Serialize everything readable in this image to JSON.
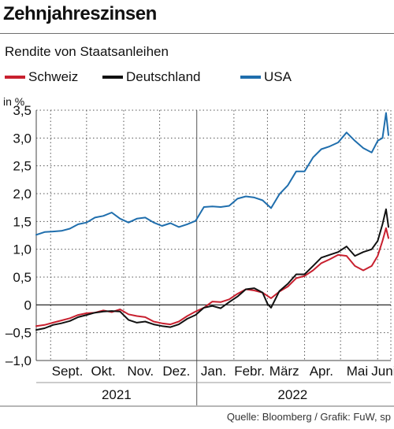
{
  "title": "Zehnjahreszinsen",
  "subtitle": "Rendite von Staatsanleihen",
  "source": "Quelle: Bloomberg / Grafik: FuW, sp",
  "colors": {
    "Schweiz": "#c8202f",
    "Deutschland": "#111111",
    "USA": "#1f6ead"
  },
  "chart_data": {
    "type": "line",
    "title": "Zehnjahreszinsen",
    "subtitle": "Rendite von Staatsanleihen",
    "ylabel": "in %",
    "ylim": [
      -1.0,
      3.5
    ],
    "yticks": [
      3.5,
      3.0,
      2.5,
      2.0,
      1.5,
      1.0,
      0.5,
      0,
      -0.5,
      -1.0
    ],
    "ytick_labels": [
      "3,5",
      "3,0",
      "2,5",
      "2,0",
      "1,5",
      "1,0",
      "0,5",
      "0",
      "–0,5",
      "–1,0"
    ],
    "xlim": [
      "2021-08-20",
      "2022-06-12"
    ],
    "month_labels": [
      {
        "label": "Sept.",
        "date": "2021-09-15"
      },
      {
        "label": "Okt.",
        "date": "2021-10-15"
      },
      {
        "label": "Nov.",
        "date": "2021-11-15"
      },
      {
        "label": "Dez.",
        "date": "2021-12-15"
      },
      {
        "label": "Jan.",
        "date": "2022-01-15"
      },
      {
        "label": "Febr.",
        "date": "2022-02-14"
      },
      {
        "label": "März",
        "date": "2022-03-15"
      },
      {
        "label": "Apr.",
        "date": "2022-04-15"
      },
      {
        "label": "Mai",
        "date": "2022-05-15"
      },
      {
        "label": "Juni",
        "date": "2022-06-06"
      }
    ],
    "month_gridlines": [
      "2021-09-01",
      "2021-10-01",
      "2021-11-01",
      "2021-12-01",
      "2022-02-01",
      "2022-03-01",
      "2022-04-01",
      "2022-05-01",
      "2022-06-01"
    ],
    "year_labels": [
      {
        "label": "2021",
        "date": "2021-10-26"
      },
      {
        "label": "2022",
        "date": "2022-03-22"
      }
    ],
    "year_boundary": "2022-01-01",
    "grid": true,
    "legend_position": "top",
    "series": [
      {
        "name": "Schweiz",
        "x": [
          "2021-08-20",
          "2021-08-27",
          "2021-09-03",
          "2021-09-10",
          "2021-09-17",
          "2021-09-24",
          "2021-10-01",
          "2021-10-08",
          "2021-10-15",
          "2021-10-22",
          "2021-10-29",
          "2021-11-05",
          "2021-11-12",
          "2021-11-19",
          "2021-11-26",
          "2021-12-03",
          "2021-12-10",
          "2021-12-17",
          "2021-12-24",
          "2021-12-31",
          "2022-01-07",
          "2022-01-14",
          "2022-01-21",
          "2022-01-28",
          "2022-02-04",
          "2022-02-11",
          "2022-02-18",
          "2022-02-25",
          "2022-03-04",
          "2022-03-11",
          "2022-03-18",
          "2022-03-25",
          "2022-04-01",
          "2022-04-08",
          "2022-04-15",
          "2022-04-22",
          "2022-04-29",
          "2022-05-06",
          "2022-05-13",
          "2022-05-20",
          "2022-05-27",
          "2022-06-01",
          "2022-06-05",
          "2022-06-08",
          "2022-06-10"
        ],
        "values": [
          -0.38,
          -0.36,
          -0.32,
          -0.28,
          -0.24,
          -0.18,
          -0.15,
          -0.14,
          -0.1,
          -0.13,
          -0.08,
          -0.17,
          -0.2,
          -0.22,
          -0.3,
          -0.33,
          -0.35,
          -0.3,
          -0.2,
          -0.12,
          -0.05,
          0.06,
          0.05,
          0.1,
          0.2,
          0.28,
          0.26,
          0.22,
          0.12,
          0.24,
          0.33,
          0.48,
          0.52,
          0.62,
          0.75,
          0.82,
          0.9,
          0.88,
          0.7,
          0.62,
          0.7,
          0.88,
          1.15,
          1.38,
          1.2
        ]
      },
      {
        "name": "Deutschland",
        "x": [
          "2021-08-20",
          "2021-08-27",
          "2021-09-03",
          "2021-09-10",
          "2021-09-17",
          "2021-09-24",
          "2021-10-01",
          "2021-10-08",
          "2021-10-15",
          "2021-10-22",
          "2021-10-29",
          "2021-11-05",
          "2021-11-12",
          "2021-11-19",
          "2021-11-26",
          "2021-12-03",
          "2021-12-10",
          "2021-12-17",
          "2021-12-24",
          "2021-12-31",
          "2022-01-07",
          "2022-01-14",
          "2022-01-21",
          "2022-01-28",
          "2022-02-04",
          "2022-02-11",
          "2022-02-18",
          "2022-02-25",
          "2022-03-01",
          "2022-03-04",
          "2022-03-11",
          "2022-03-18",
          "2022-03-25",
          "2022-04-01",
          "2022-04-08",
          "2022-04-15",
          "2022-04-22",
          "2022-04-29",
          "2022-05-06",
          "2022-05-13",
          "2022-05-20",
          "2022-05-27",
          "2022-06-01",
          "2022-06-05",
          "2022-06-08",
          "2022-06-10"
        ],
        "values": [
          -0.45,
          -0.42,
          -0.36,
          -0.33,
          -0.29,
          -0.22,
          -0.18,
          -0.14,
          -0.12,
          -0.11,
          -0.12,
          -0.27,
          -0.32,
          -0.3,
          -0.35,
          -0.38,
          -0.4,
          -0.35,
          -0.25,
          -0.18,
          -0.05,
          -0.02,
          -0.06,
          0.05,
          0.15,
          0.28,
          0.3,
          0.22,
          0.02,
          -0.05,
          0.25,
          0.38,
          0.55,
          0.55,
          0.7,
          0.85,
          0.9,
          0.95,
          1.05,
          0.88,
          0.95,
          1.0,
          1.15,
          1.45,
          1.72,
          1.4
        ]
      },
      {
        "name": "USA",
        "x": [
          "2021-08-20",
          "2021-08-27",
          "2021-09-03",
          "2021-09-10",
          "2021-09-17",
          "2021-09-24",
          "2021-10-01",
          "2021-10-08",
          "2021-10-15",
          "2021-10-22",
          "2021-10-29",
          "2021-11-05",
          "2021-11-12",
          "2021-11-19",
          "2021-11-26",
          "2021-12-03",
          "2021-12-10",
          "2021-12-17",
          "2021-12-24",
          "2021-12-31",
          "2022-01-07",
          "2022-01-14",
          "2022-01-21",
          "2022-01-28",
          "2022-02-04",
          "2022-02-11",
          "2022-02-18",
          "2022-02-25",
          "2022-03-04",
          "2022-03-11",
          "2022-03-18",
          "2022-03-25",
          "2022-04-01",
          "2022-04-08",
          "2022-04-15",
          "2022-04-22",
          "2022-04-29",
          "2022-05-06",
          "2022-05-13",
          "2022-05-20",
          "2022-05-27",
          "2022-06-01",
          "2022-06-05",
          "2022-06-08",
          "2022-06-10"
        ],
        "values": [
          1.26,
          1.31,
          1.32,
          1.33,
          1.37,
          1.45,
          1.48,
          1.57,
          1.6,
          1.66,
          1.55,
          1.48,
          1.55,
          1.57,
          1.48,
          1.42,
          1.47,
          1.4,
          1.45,
          1.51,
          1.76,
          1.77,
          1.76,
          1.78,
          1.91,
          1.95,
          1.93,
          1.88,
          1.74,
          1.99,
          2.15,
          2.4,
          2.4,
          2.65,
          2.8,
          2.85,
          2.92,
          3.1,
          2.95,
          2.82,
          2.74,
          2.95,
          3.0,
          3.45,
          3.05
        ]
      }
    ]
  }
}
